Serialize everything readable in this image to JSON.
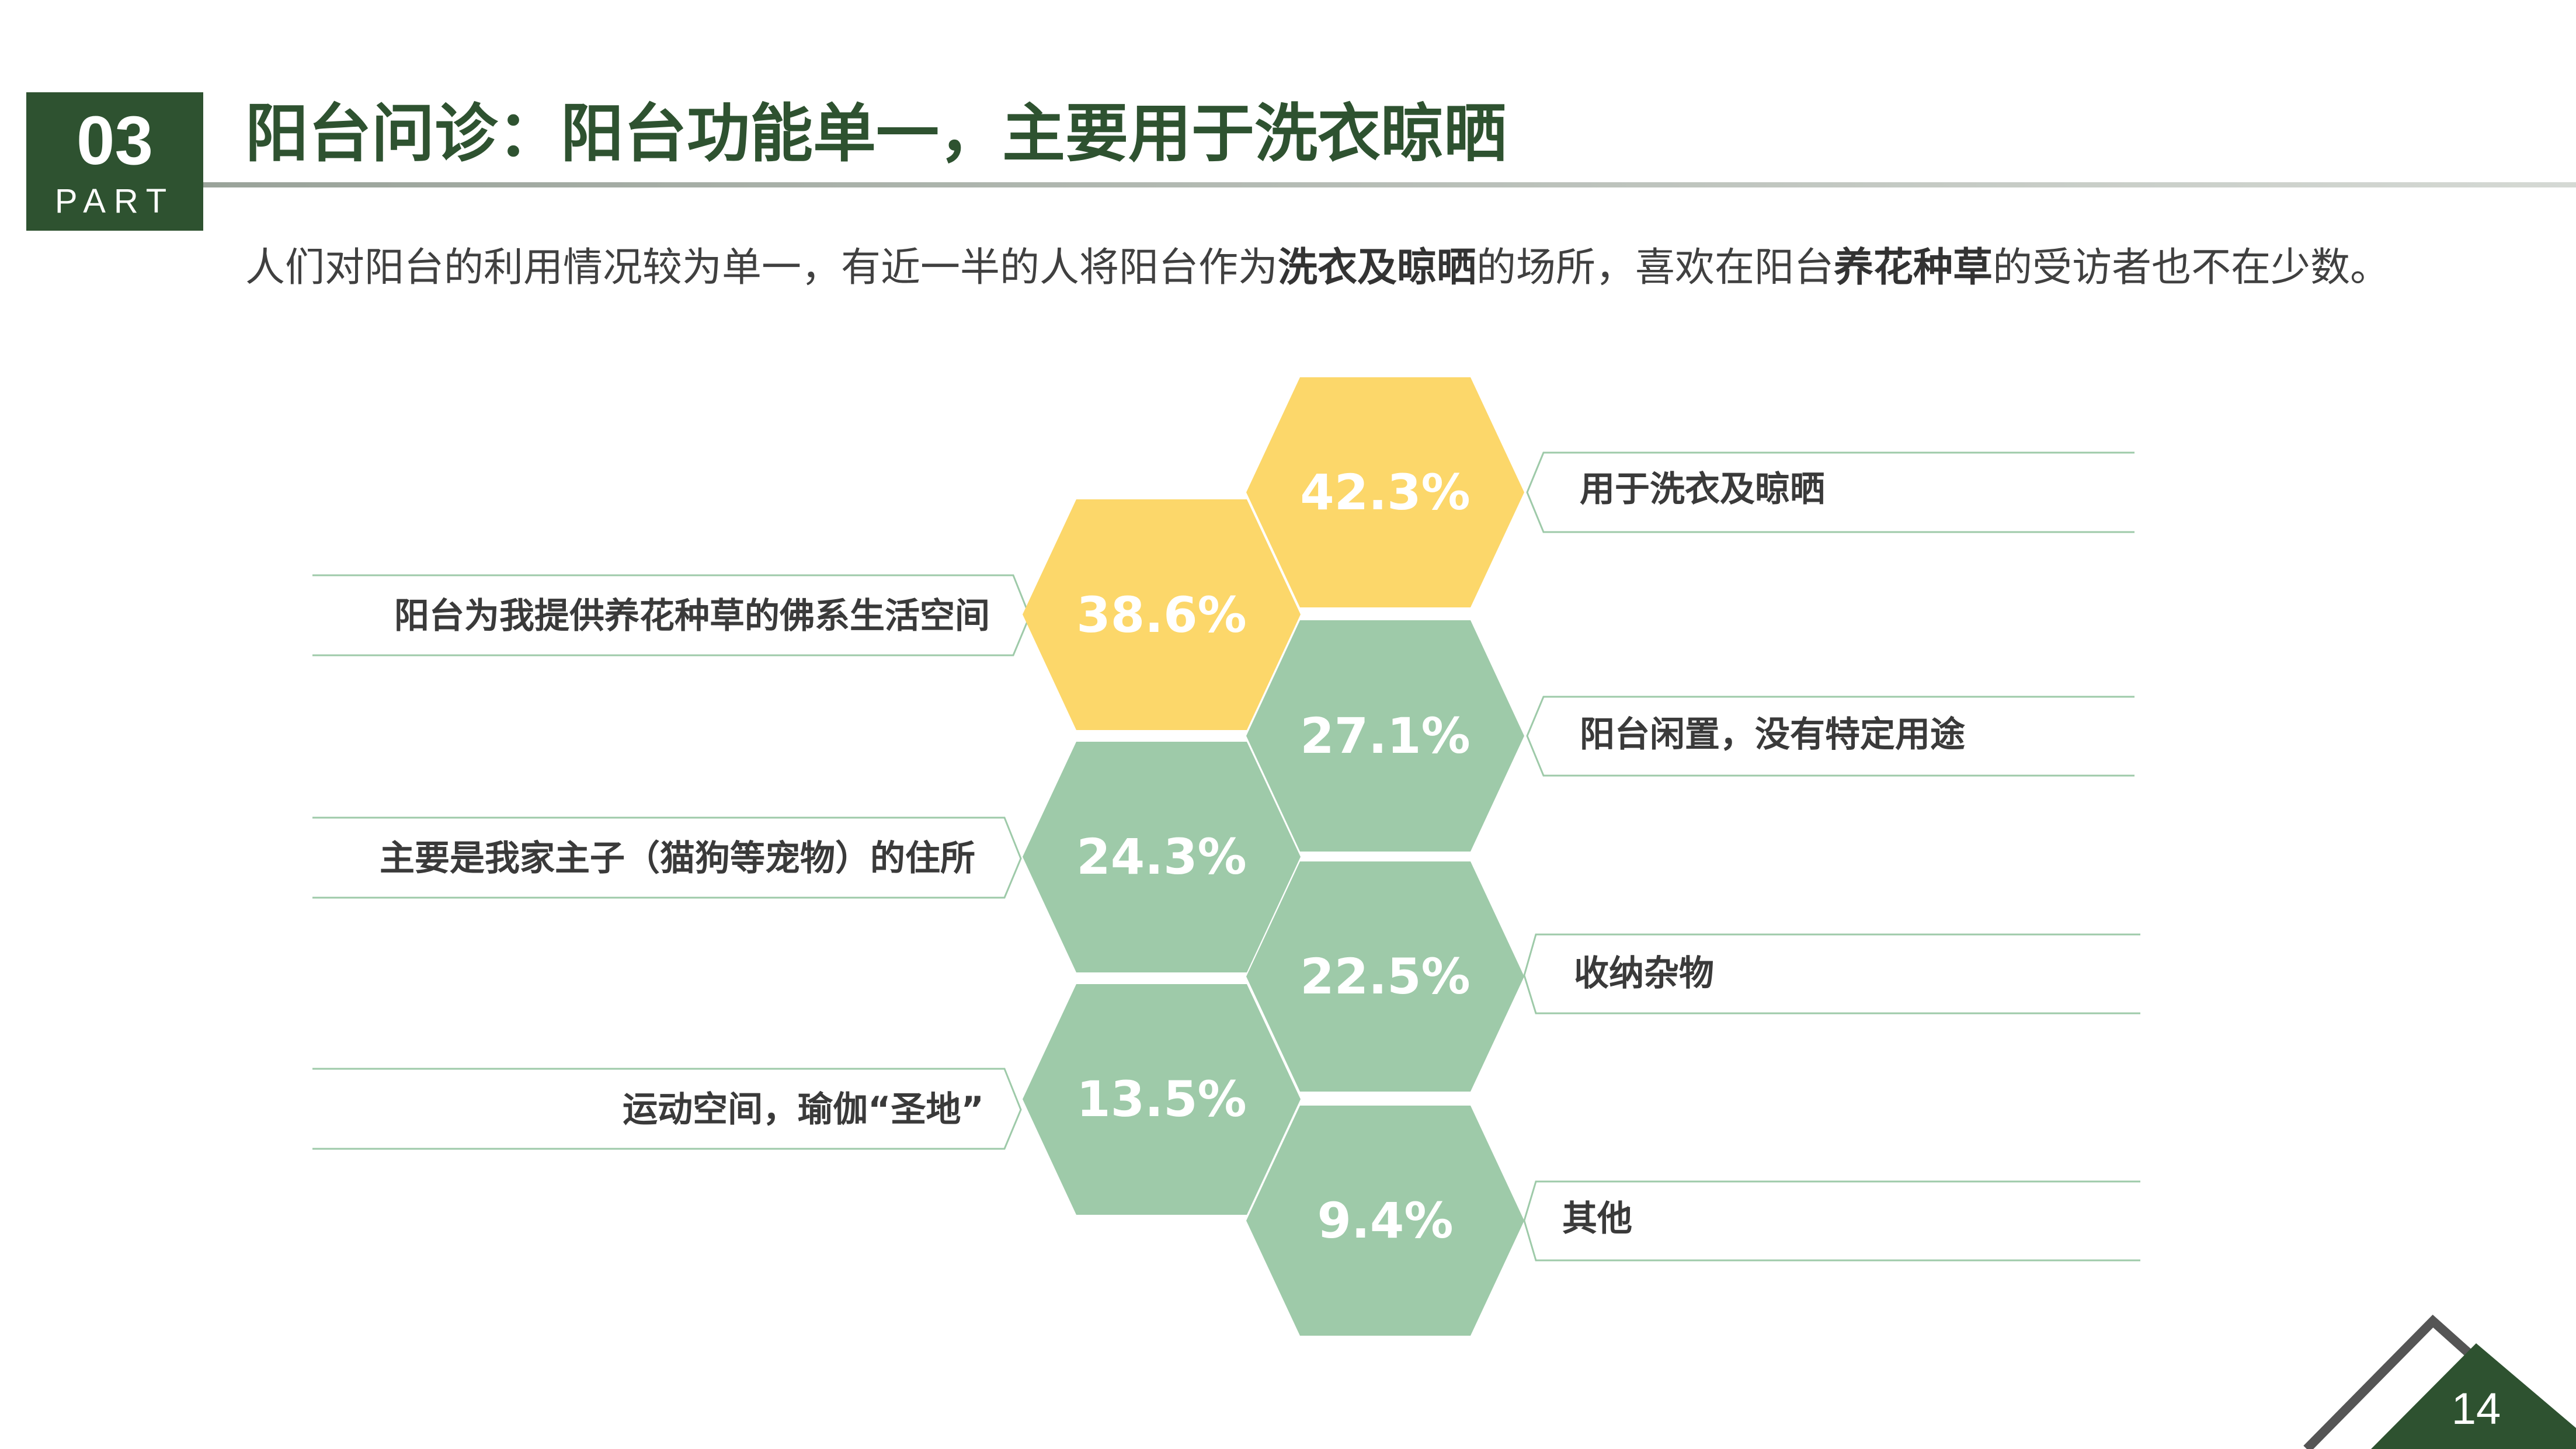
{
  "section": {
    "number": "03",
    "label": "PART"
  },
  "title": "阳台问诊：阳台功能单一，主要用于洗衣晾晒",
  "intro": {
    "part1": "人们对阳台的利用情况较为单一，有近一半的人将阳台作为",
    "bold1": "洗衣及晾晒",
    "part2": "的场所，喜欢在阳台",
    "bold2": "养花种草",
    "part3": "的受访者也不在少数。"
  },
  "colors": {
    "green_dark": "#2e5230",
    "yellow": "#fcd76a",
    "green_light": "#9ecaa9",
    "gray_line": "#555555"
  },
  "items": [
    {
      "value": "42.3%",
      "caption": "用于洗衣及晾晒",
      "color": "yellow"
    },
    {
      "value": "38.6%",
      "caption": "阳台为我提供养花种草的佛系生活空间",
      "color": "yellow"
    },
    {
      "value": "27.1%",
      "caption": "阳台闲置，没有特定用途",
      "color": "green_light"
    },
    {
      "value": "24.3%",
      "caption": "主要是我家主子（猫狗等宠物）的住所",
      "color": "green_light"
    },
    {
      "value": "22.5%",
      "caption": "收纳杂物",
      "color": "green_light"
    },
    {
      "value": "13.5%",
      "caption": "运动空间，瑜伽“圣地”",
      "color": "green_light"
    },
    {
      "value": "9.4%",
      "caption": "其他",
      "color": "green_light"
    }
  ],
  "page_number": "14"
}
